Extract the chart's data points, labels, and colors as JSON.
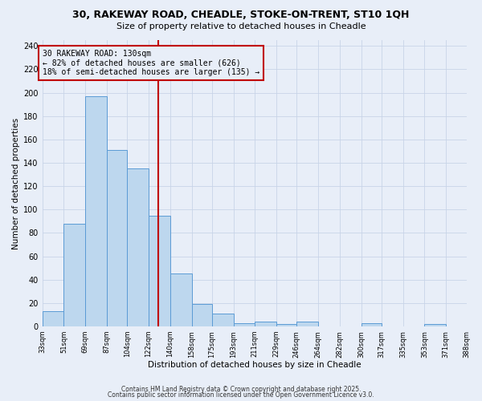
{
  "title_line1": "30, RAKEWAY ROAD, CHEADLE, STOKE-ON-TRENT, ST10 1QH",
  "title_line2": "Size of property relative to detached houses in Cheadle",
  "xlabel": "Distribution of detached houses by size in Cheadle",
  "ylabel": "Number of detached properties",
  "bar_edges": [
    33,
    51,
    69,
    87,
    104,
    122,
    140,
    158,
    175,
    193,
    211,
    229,
    246,
    264,
    282,
    300,
    317,
    335,
    353,
    371,
    388
  ],
  "bar_heights": [
    13,
    88,
    197,
    151,
    135,
    95,
    45,
    19,
    11,
    3,
    4,
    2,
    4,
    0,
    0,
    3,
    0,
    0,
    2,
    0
  ],
  "bar_color": "#bdd7ee",
  "bar_edge_color": "#5b9bd5",
  "property_line_x": 130,
  "property_line_color": "#c00000",
  "ylim": [
    0,
    245
  ],
  "yticks": [
    0,
    20,
    40,
    60,
    80,
    100,
    120,
    140,
    160,
    180,
    200,
    220,
    240
  ],
  "annotation_line1": "30 RAKEWAY ROAD: 130sqm",
  "annotation_line2": "← 82% of detached houses are smaller (626)",
  "annotation_line3": "18% of semi-detached houses are larger (135) →",
  "grid_color": "#c8d4e8",
  "bg_color": "#e8eef8",
  "footnote1": "Contains HM Land Registry data © Crown copyright and database right 2025.",
  "footnote2": "Contains public sector information licensed under the Open Government Licence v3.0."
}
